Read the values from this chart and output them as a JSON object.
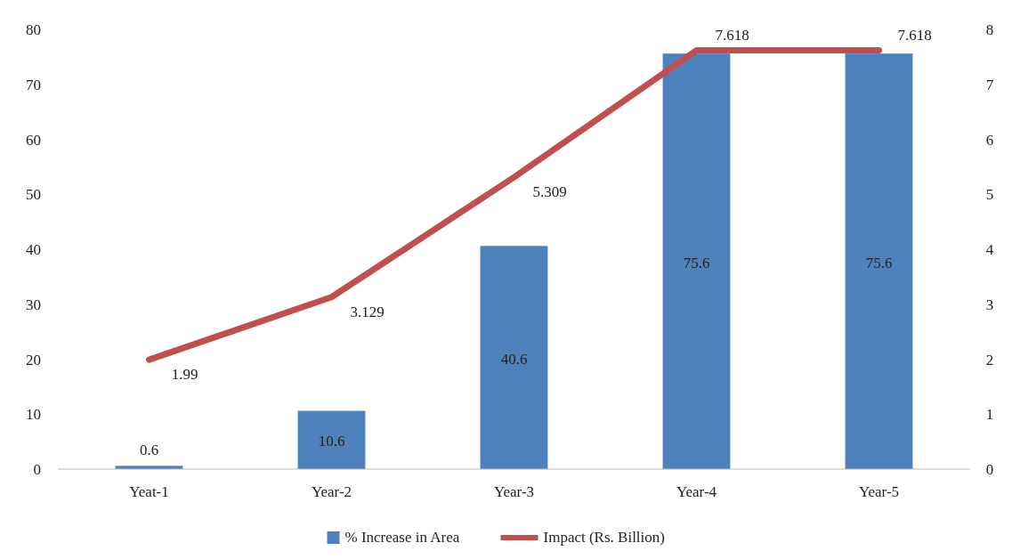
{
  "chart_data": {
    "type": "bar",
    "categories": [
      "Yeat-1",
      "Year-2",
      "Year-3",
      "Year-4",
      "Year-5"
    ],
    "series": [
      {
        "name": "% Increase in Area",
        "color": "#4f81bd",
        "values": [
          0.6,
          10.6,
          40.6,
          75.6,
          75.6
        ]
      },
      {
        "name": "Impact (Rs. Billion)",
        "type": "line",
        "axis": "y2",
        "color": "#c0504d",
        "values": [
          1.99,
          3.129,
          5.309,
          7.618,
          7.618
        ]
      }
    ],
    "ylim": [
      0,
      80
    ],
    "yticks": [
      0,
      10,
      20,
      30,
      40,
      50,
      60,
      70,
      80
    ],
    "y2lim": [
      0,
      8
    ],
    "y2ticks": [
      0,
      1,
      2,
      3,
      4,
      5,
      6,
      7,
      8
    ],
    "data_labels": true,
    "grid": false,
    "legend": "bottom",
    "marker": "none",
    "line_style": "solid"
  }
}
